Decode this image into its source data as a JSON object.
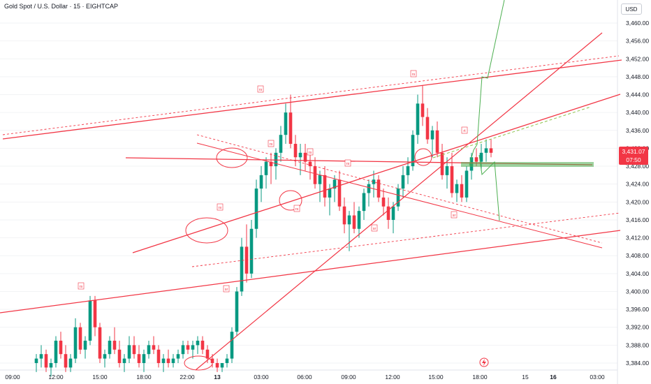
{
  "header": {
    "title": "Gold Spot / U.S. Dollar · 15 · EIGHTCAP"
  },
  "currency_label": "USD",
  "last_price": {
    "value": "3,431.07",
    "countdown": "07:50",
    "color": "#f23645"
  },
  "colors": {
    "up": "#089981",
    "down": "#f23645",
    "line": "#f23645",
    "projection": "#4caf50"
  },
  "icons": [
    "lightning-icon"
  ],
  "chart_data": {
    "type": "candlestick",
    "x_ticks": [
      "09:00",
      "12:00",
      "15:00",
      "18:00",
      "22:00",
      "13",
      "03:00",
      "06:00",
      "09:00",
      "12:00",
      "15:00",
      "18:00",
      "15",
      "16",
      "03:00"
    ],
    "y_ticks": [
      "3,460.00",
      "3,456.00",
      "3,452.00",
      "3,448.00",
      "3,444.00",
      "3,440.00",
      "3,436.00",
      "3,432.00",
      "3,428.00",
      "3,424.00",
      "3,420.00",
      "3,416.00",
      "3,412.00",
      "3,408.00",
      "3,404.00",
      "3,400.00",
      "3,396.00",
      "3,392.00",
      "3,388.00",
      "3,384.00"
    ],
    "ylim": [
      3382,
      3464
    ],
    "annotations": [
      "rs",
      "rs",
      "rs",
      "rs",
      "rs",
      "rs",
      "rs",
      "rs",
      "rt",
      "sr",
      "sr",
      "sr"
    ],
    "candles": [
      [
        3384,
        3386,
        3382,
        3385
      ],
      [
        3385,
        3388,
        3383,
        3386
      ],
      [
        3386,
        3387,
        3382,
        3383
      ],
      [
        3383,
        3385,
        3381,
        3384
      ],
      [
        3384,
        3390,
        3383,
        3389
      ],
      [
        3389,
        3391,
        3385,
        3386
      ],
      [
        3386,
        3388,
        3382,
        3383
      ],
      [
        3383,
        3386,
        3382,
        3385
      ],
      [
        3385,
        3394,
        3384,
        3392
      ],
      [
        3392,
        3393,
        3386,
        3387
      ],
      [
        3387,
        3390,
        3385,
        3389
      ],
      [
        3389,
        3399,
        3388,
        3398
      ],
      [
        3398,
        3399,
        3390,
        3392
      ],
      [
        3392,
        3393,
        3384,
        3385
      ],
      [
        3385,
        3387,
        3383,
        3386
      ],
      [
        3386,
        3390,
        3385,
        3389
      ],
      [
        3389,
        3392,
        3386,
        3387
      ],
      [
        3387,
        3389,
        3383,
        3384
      ],
      [
        3384,
        3386,
        3382,
        3385
      ],
      [
        3385,
        3390,
        3384,
        3388
      ],
      [
        3388,
        3390,
        3385,
        3386
      ],
      [
        3386,
        3388,
        3383,
        3384
      ],
      [
        3384,
        3387,
        3382,
        3386
      ],
      [
        3386,
        3389,
        3385,
        3388
      ],
      [
        3388,
        3390,
        3386,
        3387
      ],
      [
        3387,
        3388,
        3383,
        3384
      ],
      [
        3384,
        3386,
        3382,
        3385
      ],
      [
        3385,
        3387,
        3383,
        3384
      ],
      [
        3384,
        3386,
        3383,
        3385
      ],
      [
        3385,
        3387,
        3384,
        3386
      ],
      [
        3386,
        3389,
        3385,
        3388
      ],
      [
        3388,
        3389,
        3386,
        3387
      ],
      [
        3387,
        3389,
        3385,
        3388
      ],
      [
        3388,
        3390,
        3386,
        3389
      ],
      [
        3389,
        3390,
        3386,
        3387
      ],
      [
        3387,
        3388,
        3384,
        3385
      ],
      [
        3385,
        3386,
        3383,
        3384
      ],
      [
        3384,
        3385,
        3382,
        3383
      ],
      [
        3383,
        3384,
        3382,
        3384
      ],
      [
        3384,
        3386,
        3383,
        3385
      ],
      [
        3385,
        3392,
        3384,
        3391
      ],
      [
        3391,
        3401,
        3390,
        3400
      ],
      [
        3400,
        3412,
        3399,
        3410
      ],
      [
        3410,
        3415,
        3402,
        3404
      ],
      [
        3404,
        3416,
        3403,
        3414
      ],
      [
        3414,
        3425,
        3412,
        3423
      ],
      [
        3423,
        3428,
        3420,
        3426
      ],
      [
        3426,
        3430,
        3423,
        3429
      ],
      [
        3429,
        3431,
        3424,
        3428
      ],
      [
        3428,
        3432,
        3425,
        3431
      ],
      [
        3431,
        3437,
        3429,
        3435
      ],
      [
        3435,
        3442,
        3433,
        3440
      ],
      [
        3440,
        3444,
        3432,
        3433
      ],
      [
        3433,
        3435,
        3428,
        3430
      ],
      [
        3430,
        3433,
        3426,
        3431
      ],
      [
        3431,
        3433,
        3427,
        3429
      ],
      [
        3429,
        3431,
        3425,
        3428
      ],
      [
        3428,
        3430,
        3423,
        3424
      ],
      [
        3424,
        3427,
        3420,
        3426
      ],
      [
        3426,
        3428,
        3419,
        3421
      ],
      [
        3421,
        3424,
        3417,
        3423
      ],
      [
        3423,
        3426,
        3420,
        3425
      ],
      [
        3425,
        3427,
        3418,
        3419
      ],
      [
        3419,
        3421,
        3413,
        3415
      ],
      [
        3415,
        3418,
        3409,
        3417
      ],
      [
        3417,
        3420,
        3413,
        3414
      ],
      [
        3414,
        3419,
        3412,
        3418
      ],
      [
        3418,
        3423,
        3416,
        3422
      ],
      [
        3422,
        3425,
        3419,
        3424
      ],
      [
        3424,
        3427,
        3421,
        3425
      ],
      [
        3425,
        3426,
        3420,
        3421
      ],
      [
        3421,
        3423,
        3417,
        3419
      ],
      [
        3419,
        3421,
        3414,
        3416
      ],
      [
        3416,
        3420,
        3413,
        3419
      ],
      [
        3419,
        3424,
        3418,
        3423
      ],
      [
        3423,
        3428,
        3421,
        3426
      ],
      [
        3426,
        3430,
        3424,
        3428
      ],
      [
        3428,
        3436,
        3427,
        3435
      ],
      [
        3435,
        3444,
        3433,
        3442
      ],
      [
        3442,
        3446,
        3437,
        3439
      ],
      [
        3439,
        3441,
        3433,
        3434
      ],
      [
        3434,
        3437,
        3430,
        3436
      ],
      [
        3436,
        3438,
        3430,
        3431
      ],
      [
        3431,
        3433,
        3425,
        3426
      ],
      [
        3426,
        3430,
        3423,
        3428
      ],
      [
        3428,
        3431,
        3421,
        3422
      ],
      [
        3422,
        3425,
        3420,
        3424
      ],
      [
        3424,
        3426,
        3420,
        3421
      ],
      [
        3421,
        3428,
        3420,
        3427
      ],
      [
        3427,
        3431,
        3425,
        3430
      ],
      [
        3430,
        3432,
        3428,
        3429
      ],
      [
        3429,
        3433,
        3427,
        3431
      ],
      [
        3431,
        3434,
        3429,
        3432
      ],
      [
        3432,
        3434,
        3430,
        3431
      ]
    ]
  }
}
